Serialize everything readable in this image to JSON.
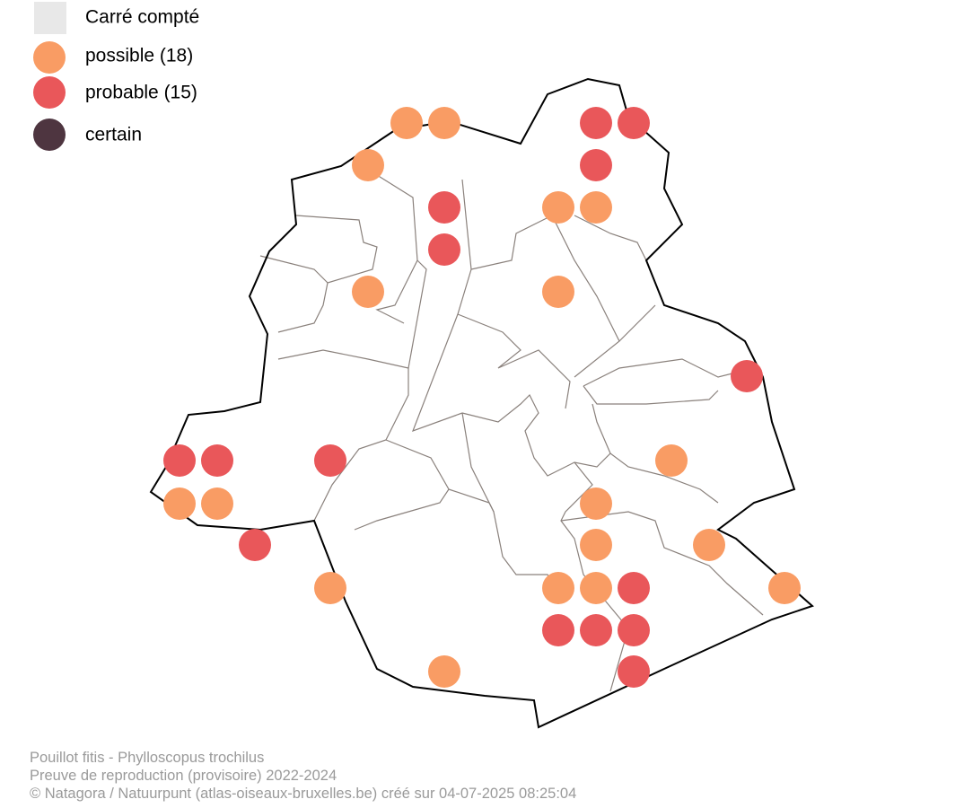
{
  "legend": {
    "items": [
      {
        "label": "Carré compté",
        "color": "#e8e8e8"
      },
      {
        "label": "possible (18)",
        "color": "#f99c64"
      },
      {
        "label": "probable (15)",
        "color": "#e9575a"
      },
      {
        "label": "certain",
        "color": "#4e3540"
      }
    ]
  },
  "footer": {
    "lines": [
      "Pouillot fitis - Phylloscopus trochilus",
      "Preuve de reproduction (provisoire) 2022-2024",
      "© Natagora / Natuurpunt (atlas-oiseaux-bruxelles.be) créé sur 04-07-2025 08:25:04"
    ]
  }
}
